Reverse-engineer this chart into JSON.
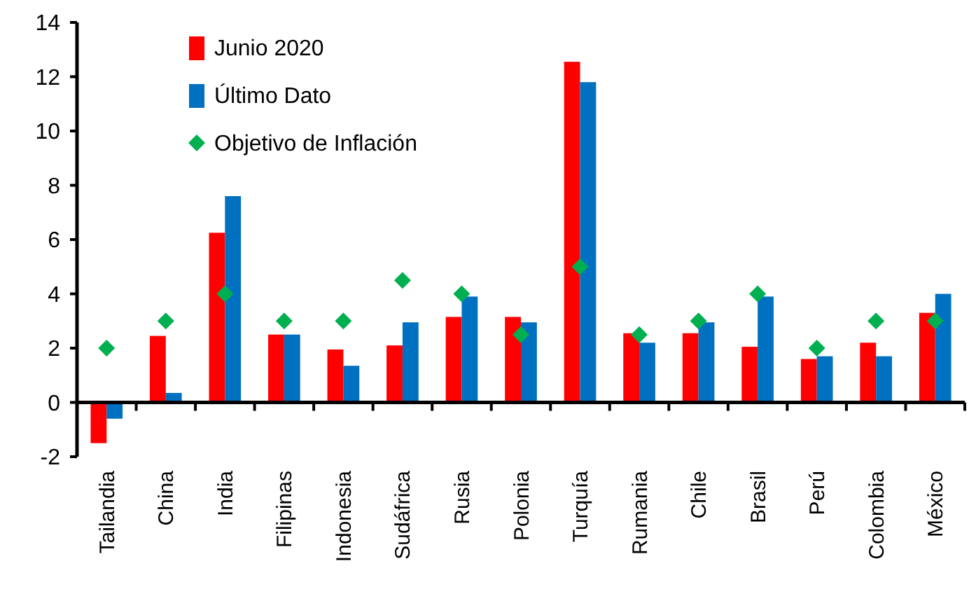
{
  "chart_data": {
    "type": "bar",
    "categories": [
      "Tailandia",
      "China",
      "India",
      "Filipinas",
      "Indonesia",
      "Sudáfrica",
      "Rusia",
      "Polonia",
      "Turquía",
      "Rumania",
      "Chile",
      "Brasil",
      "Perú",
      "Colombia",
      "México"
    ],
    "series": [
      {
        "name": "Junio 2020",
        "color": "#ff0000",
        "values": [
          -1.5,
          2.45,
          6.25,
          2.5,
          1.95,
          2.1,
          3.15,
          3.15,
          12.55,
          2.55,
          2.55,
          2.05,
          1.6,
          2.2,
          3.3
        ]
      },
      {
        "name": "Último Dato",
        "color": "#0070c0",
        "values": [
          -0.6,
          0.35,
          7.6,
          2.5,
          1.35,
          2.95,
          3.9,
          2.95,
          11.8,
          2.2,
          2.95,
          3.9,
          1.7,
          1.7,
          4.0
        ]
      },
      {
        "name": "Objetivo de Inflación",
        "type": "scatter",
        "marker": "diamond",
        "color": "#00b050",
        "values": [
          2,
          3,
          4,
          3,
          3,
          4.5,
          4,
          2.5,
          5,
          2.5,
          3,
          4,
          2,
          3,
          3
        ]
      }
    ],
    "ylim": [
      -2,
      14
    ],
    "yticks": [
      -2,
      0,
      2,
      4,
      6,
      8,
      10,
      12,
      14
    ],
    "legend": "top left"
  }
}
